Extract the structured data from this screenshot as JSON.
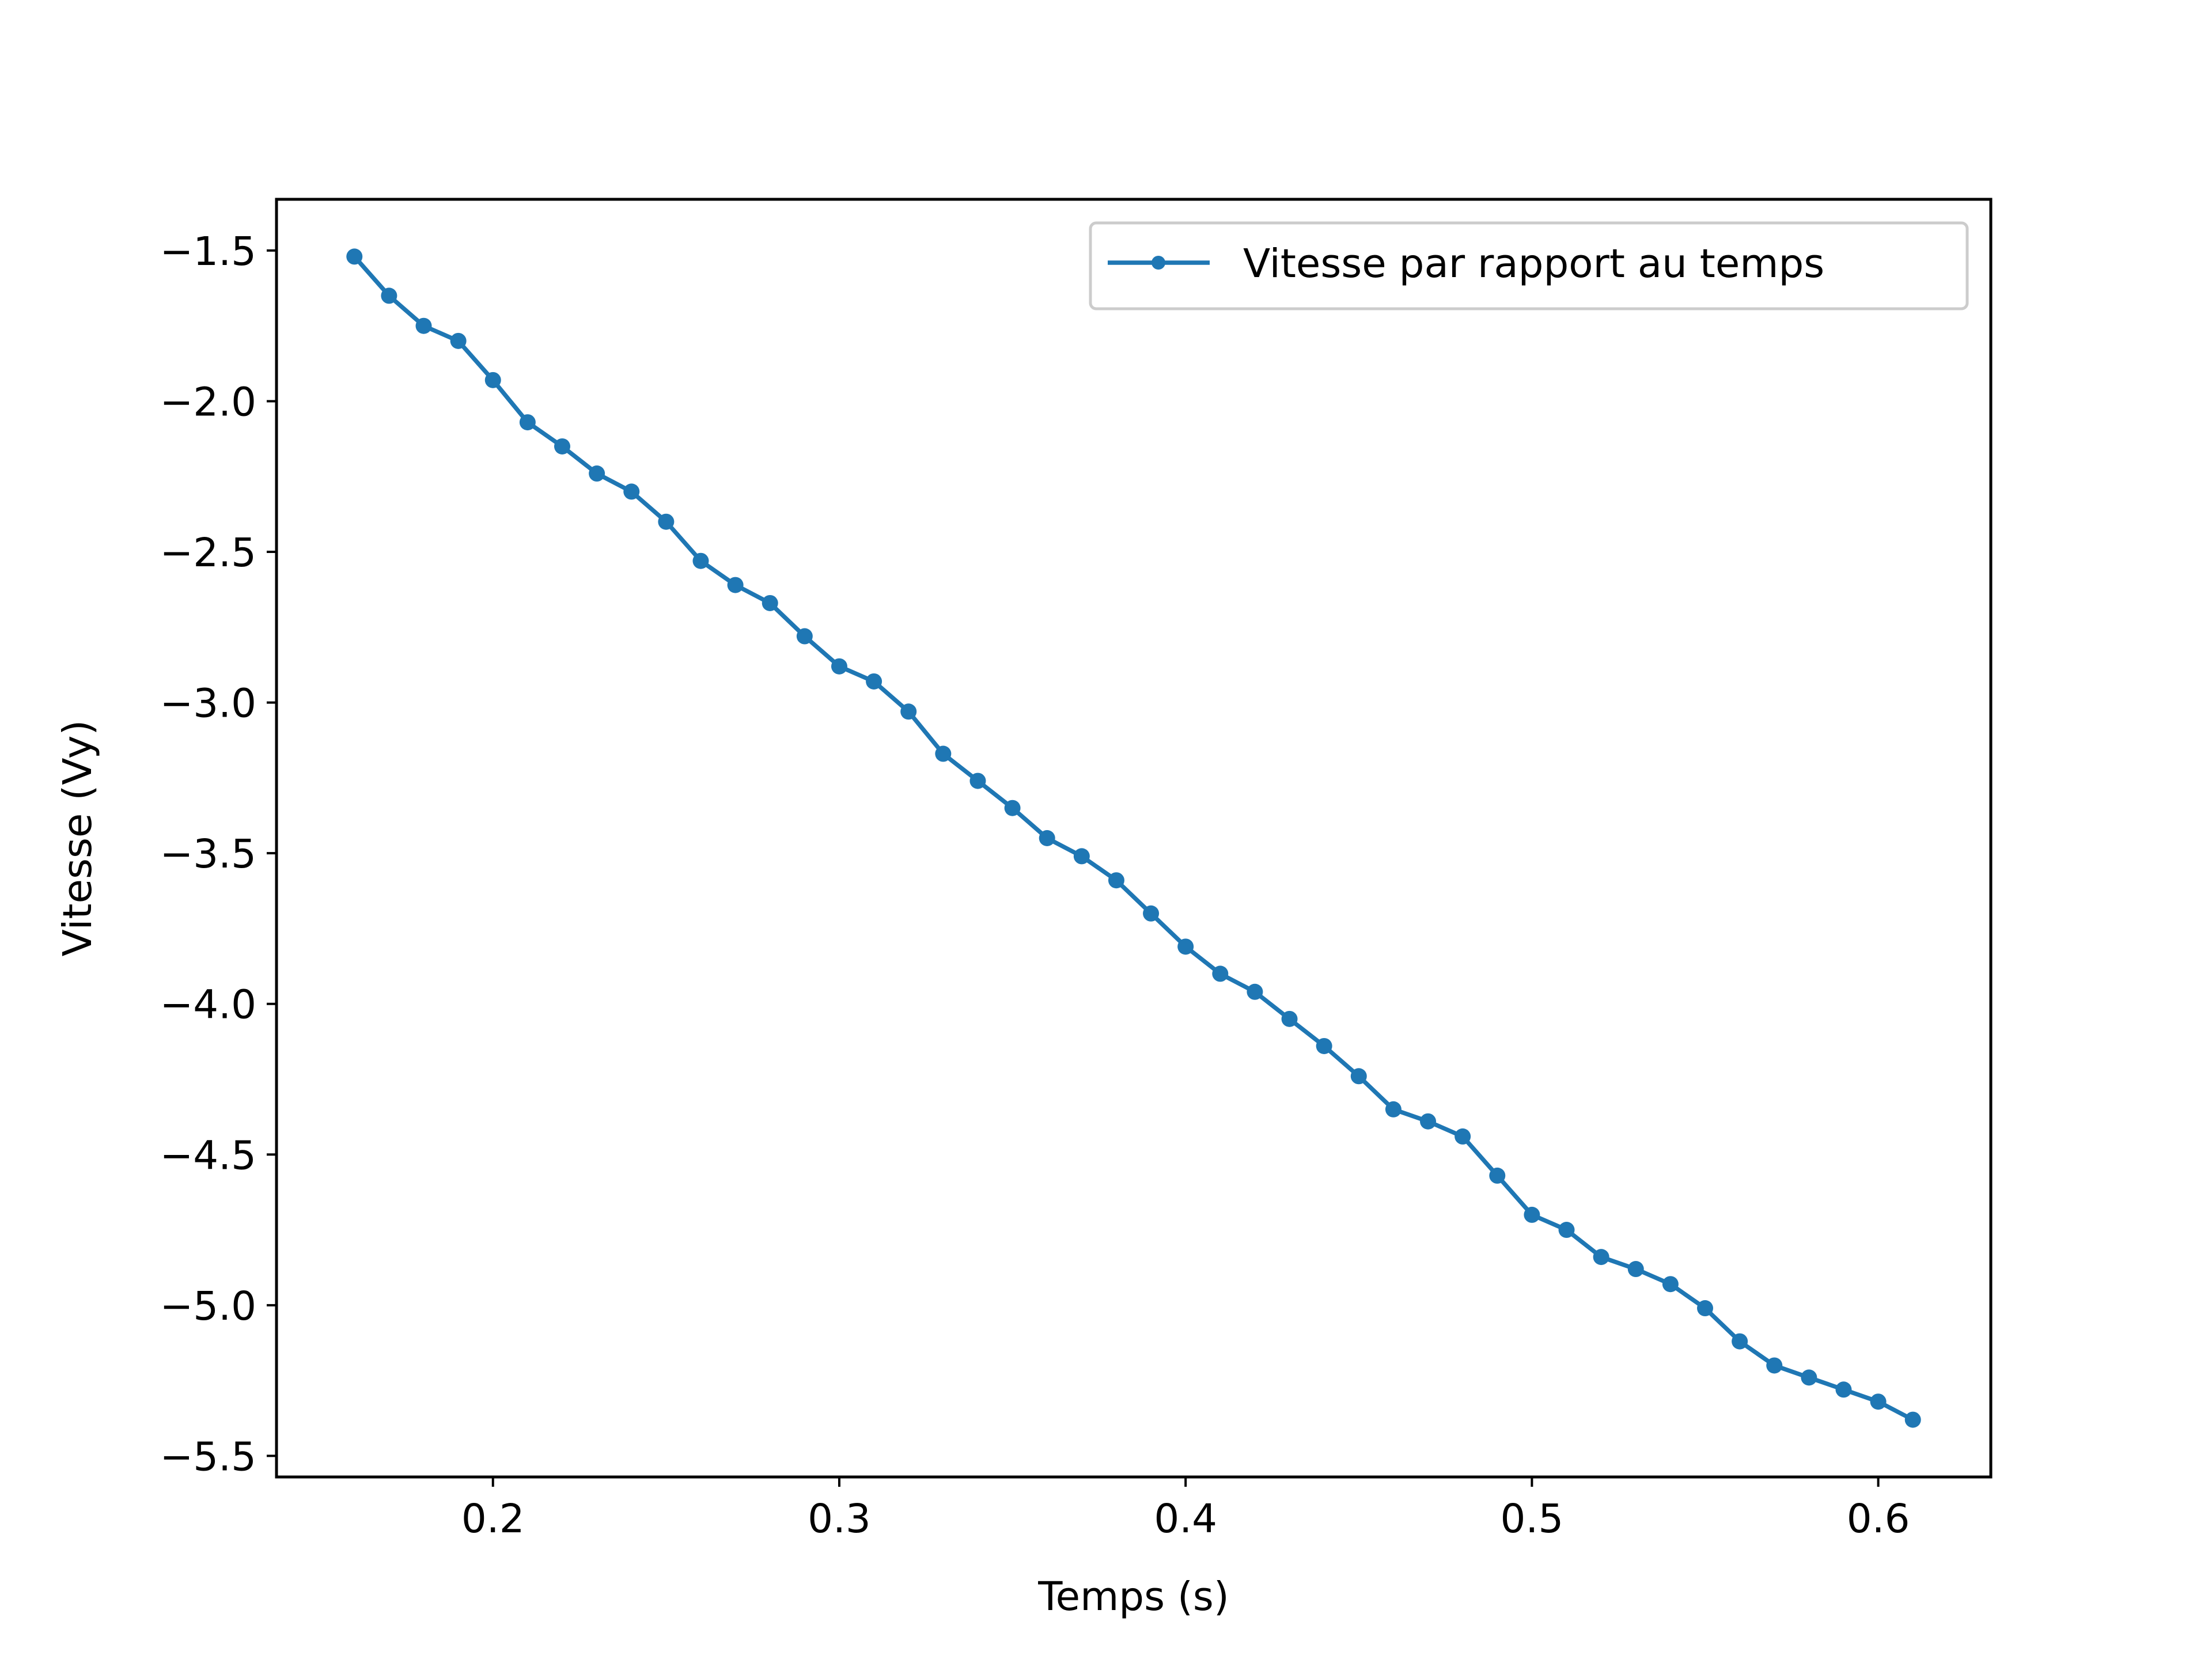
{
  "chart_data": {
    "type": "line",
    "xlabel": "Temps (s)",
    "ylabel": "Vitesse (Vy)",
    "xlim": [
      0.1375,
      0.6325
    ],
    "ylim": [
      -5.57,
      -1.33
    ],
    "xticks": [
      0.2,
      0.3,
      0.4,
      0.5,
      0.6
    ],
    "xtick_labels": [
      "0.2",
      "0.3",
      "0.4",
      "0.5",
      "0.6"
    ],
    "yticks": [
      -1.5,
      -2.0,
      -2.5,
      -3.0,
      -3.5,
      -4.0,
      -4.5,
      -5.0,
      -5.5
    ],
    "ytick_labels": [
      "−1.5",
      "−2.0",
      "−2.5",
      "−3.0",
      "−3.5",
      "−4.0",
      "−4.5",
      "−5.0",
      "−5.5"
    ],
    "grid": false,
    "legend_position": "top-right",
    "series": [
      {
        "name": "Vitesse par rapport au temps",
        "color": "#1f77b4",
        "marker": "dot",
        "x": [
          0.16,
          0.17,
          0.18,
          0.19,
          0.2,
          0.21,
          0.22,
          0.23,
          0.24,
          0.25,
          0.26,
          0.27,
          0.28,
          0.29,
          0.3,
          0.31,
          0.32,
          0.33,
          0.34,
          0.35,
          0.36,
          0.37,
          0.38,
          0.39,
          0.4,
          0.41,
          0.42,
          0.43,
          0.44,
          0.45,
          0.46,
          0.47,
          0.48,
          0.49,
          0.5,
          0.51,
          0.52,
          0.53,
          0.54,
          0.55,
          0.56,
          0.57,
          0.58,
          0.59,
          0.6,
          0.61
        ],
        "y": [
          -1.52,
          -1.65,
          -1.75,
          -1.8,
          -1.93,
          -2.07,
          -2.15,
          -2.24,
          -2.3,
          -2.4,
          -2.53,
          -2.61,
          -2.67,
          -2.78,
          -2.88,
          -2.93,
          -3.03,
          -3.17,
          -3.26,
          -3.35,
          -3.45,
          -3.51,
          -3.59,
          -3.7,
          -3.81,
          -3.9,
          -3.96,
          -4.05,
          -4.14,
          -4.24,
          -4.35,
          -4.39,
          -4.44,
          -4.57,
          -4.7,
          -4.75,
          -4.84,
          -4.88,
          -4.93,
          -5.01,
          -5.12,
          -5.2,
          -5.24,
          -5.28,
          -5.32,
          -5.38
        ]
      }
    ]
  }
}
